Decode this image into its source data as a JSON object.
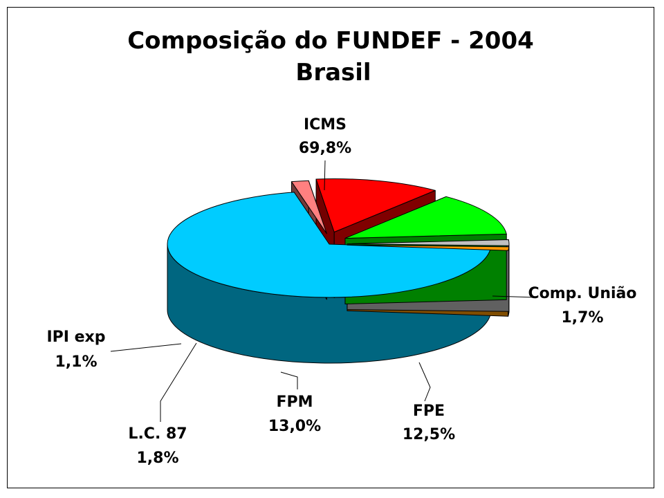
{
  "chart_data": {
    "type": "pie",
    "title": "Composição do FUNDEF - 2004",
    "subtitle": "Brasil",
    "slices": [
      {
        "label": "ICMS",
        "pct": "69,8%",
        "value": 69.8,
        "color": "#00ccff"
      },
      {
        "label": "Comp. União",
        "pct": "1,7%",
        "value": 1.7,
        "color": "#ff8080"
      },
      {
        "label": "FPE",
        "pct": "12,5%",
        "value": 12.5,
        "color": "#ff0000"
      },
      {
        "label": "FPM",
        "pct": "13,0%",
        "value": 13.0,
        "color": "#00ff00"
      },
      {
        "label": "L.C. 87",
        "pct": "1,8%",
        "value": 1.8,
        "color": "#c0c0c0"
      },
      {
        "label": "IPI exp",
        "pct": "1,1%",
        "value": 1.1,
        "color": "#ff9900"
      }
    ]
  }
}
